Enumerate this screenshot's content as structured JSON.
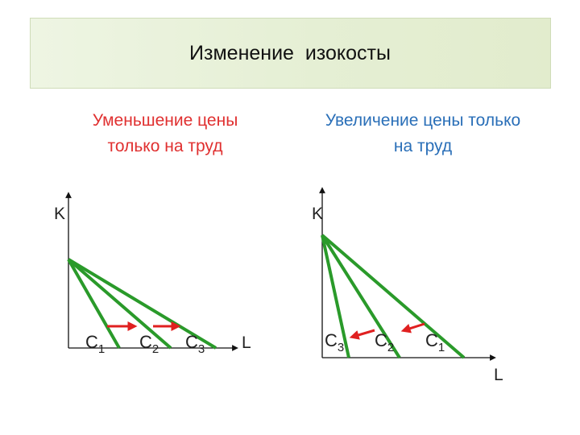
{
  "title": "Изменение  изокосты",
  "left_panel": {
    "caption_line1": "Уменьшение цены",
    "caption_line2": "только на труд",
    "axis_y": "K",
    "axis_x": "L",
    "lines": [
      {
        "base": "C",
        "sub": "1"
      },
      {
        "base": "C",
        "sub": "2"
      },
      {
        "base": "C",
        "sub": "3"
      }
    ]
  },
  "right_panel": {
    "caption_line1": "Увеличение цены только",
    "caption_line2": "на труд",
    "axis_y": "K",
    "axis_x": "L",
    "lines": [
      {
        "base": "C",
        "sub": "3"
      },
      {
        "base": "C",
        "sub": "2"
      },
      {
        "base": "C",
        "sub": "1"
      }
    ]
  },
  "colors": {
    "isocost": "#2a9a2a",
    "arrow": "#e02020",
    "axis": "#111111",
    "left_caption": "#e03030",
    "right_caption": "#2a6fb8"
  }
}
